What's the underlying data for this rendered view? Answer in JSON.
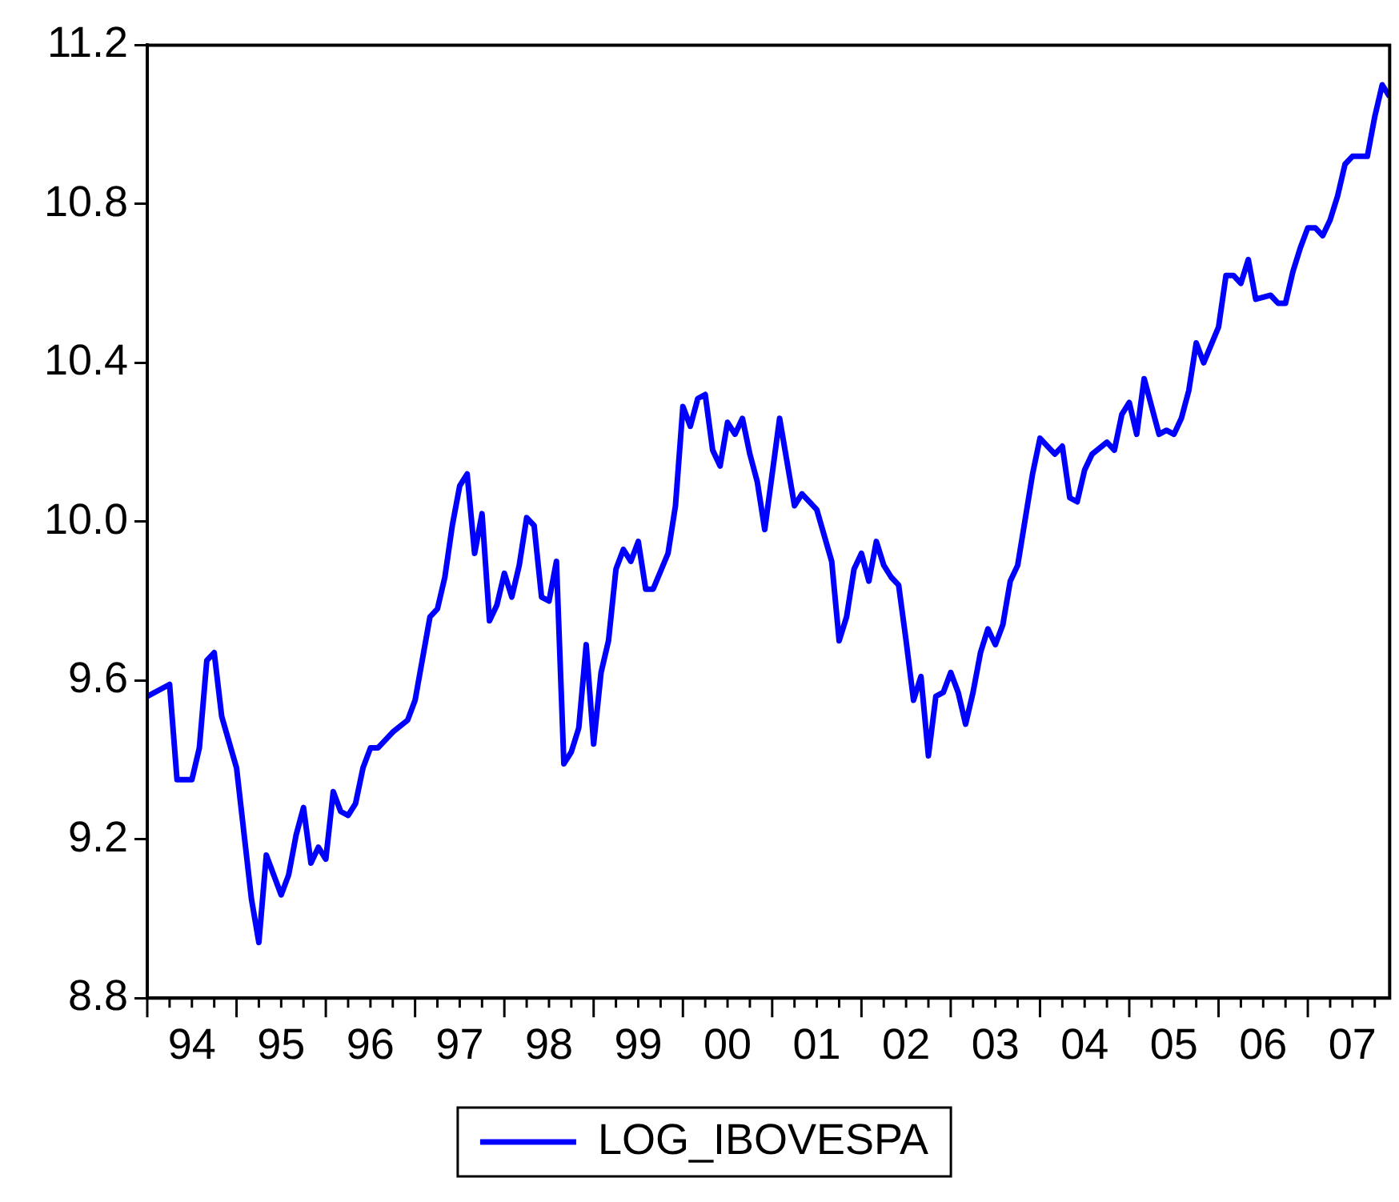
{
  "chart_data": {
    "type": "line",
    "xlim": [
      "1994-01",
      "2007-12"
    ],
    "ylim": [
      8.8,
      11.2
    ],
    "xticks": [
      {
        "value": "1994-07",
        "label": "94"
      },
      {
        "value": "1995-07",
        "label": "95"
      },
      {
        "value": "1996-07",
        "label": "96"
      },
      {
        "value": "1997-07",
        "label": "97"
      },
      {
        "value": "1998-07",
        "label": "98"
      },
      {
        "value": "1999-07",
        "label": "99"
      },
      {
        "value": "2000-07",
        "label": "00"
      },
      {
        "value": "2001-07",
        "label": "01"
      },
      {
        "value": "2002-07",
        "label": "02"
      },
      {
        "value": "2003-07",
        "label": "03"
      },
      {
        "value": "2004-07",
        "label": "04"
      },
      {
        "value": "2005-07",
        "label": "05"
      },
      {
        "value": "2006-07",
        "label": "06"
      },
      {
        "value": "2007-07",
        "label": "07"
      }
    ],
    "yticks": [
      8.8,
      9.2,
      9.6,
      {
        "value": 10,
        "label": "10.0"
      },
      10.4,
      10.8,
      11.2
    ],
    "legend": "bottom",
    "marker": "none",
    "line_style": "solid",
    "series": [
      {
        "name": "LOG_IBOVESPA",
        "color": "#0000ff",
        "x": [
          "1994-01",
          "1994-04",
          "1994-05",
          "1994-07",
          "1994-08",
          "1994-09",
          "1994-10",
          "1994-11",
          "1995-01",
          "1995-03",
          "1995-04",
          "1995-05",
          "1995-07",
          "1995-08",
          "1995-09",
          "1995-10",
          "1995-11",
          "1995-12",
          "1996-01",
          "1996-02",
          "1996-03",
          "1996-04",
          "1996-05",
          "1996-06",
          "1996-07",
          "1996-08",
          "1996-10",
          "1996-12",
          "1997-01",
          "1997-03",
          "1997-04",
          "1997-05",
          "1997-06",
          "1997-07",
          "1997-08",
          "1997-09",
          "1997-10",
          "1997-11",
          "1997-12",
          "1998-01",
          "1998-02",
          "1998-03",
          "1998-04",
          "1998-05",
          "1998-06",
          "1998-07",
          "1998-08",
          "1998-09",
          "1998-10",
          "1998-11",
          "1998-12",
          "1999-01",
          "1999-02",
          "1999-03",
          "1999-04",
          "1999-05",
          "1999-06",
          "1999-07",
          "1999-08",
          "1999-09",
          "1999-11",
          "1999-12",
          "2000-01",
          "2000-02",
          "2000-03",
          "2000-04",
          "2000-05",
          "2000-06",
          "2000-07",
          "2000-08",
          "2000-09",
          "2000-10",
          "2000-11",
          "2000-12",
          "2001-02",
          "2001-04",
          "2001-05",
          "2001-07",
          "2001-09",
          "2001-10",
          "2001-11",
          "2001-12",
          "2002-01",
          "2002-02",
          "2002-03",
          "2002-04",
          "2002-05",
          "2002-06",
          "2002-07",
          "2002-08",
          "2002-09",
          "2002-10",
          "2002-11",
          "2002-12",
          "2003-01",
          "2003-02",
          "2003-03",
          "2003-04",
          "2003-05",
          "2003-06",
          "2003-07",
          "2003-08",
          "2003-09",
          "2003-10",
          "2003-12",
          "2004-01",
          "2004-02",
          "2004-03",
          "2004-04",
          "2004-05",
          "2004-06",
          "2004-07",
          "2004-08",
          "2004-10",
          "2004-11",
          "2004-12",
          "2005-01",
          "2005-02",
          "2005-03",
          "2005-05",
          "2005-06",
          "2005-07",
          "2005-08",
          "2005-09",
          "2005-10",
          "2005-11",
          "2006-01",
          "2006-02",
          "2006-03",
          "2006-04",
          "2006-05",
          "2006-06",
          "2006-08",
          "2006-09",
          "2006-10",
          "2006-11",
          "2006-12",
          "2007-01",
          "2007-02",
          "2007-03",
          "2007-04",
          "2007-05",
          "2007-06",
          "2007-07",
          "2007-08",
          "2007-09",
          "2007-10",
          "2007-11",
          "2007-12"
        ],
        "values": [
          9.56,
          9.59,
          9.35,
          9.35,
          9.43,
          9.65,
          9.67,
          9.51,
          9.38,
          9.05,
          8.94,
          9.16,
          9.06,
          9.11,
          9.21,
          9.28,
          9.14,
          9.18,
          9.15,
          9.32,
          9.27,
          9.26,
          9.29,
          9.38,
          9.43,
          9.43,
          9.47,
          9.5,
          9.55,
          9.76,
          9.78,
          9.86,
          9.99,
          10.09,
          10.12,
          9.92,
          10.02,
          9.75,
          9.79,
          9.87,
          9.81,
          9.89,
          10.01,
          9.99,
          9.81,
          9.8,
          9.9,
          9.39,
          9.42,
          9.48,
          9.69,
          9.44,
          9.62,
          9.7,
          9.88,
          9.93,
          9.9,
          9.95,
          9.83,
          9.83,
          9.92,
          10.04,
          10.29,
          10.24,
          10.31,
          10.32,
          10.18,
          10.14,
          10.25,
          10.22,
          10.26,
          10.17,
          10.1,
          9.98,
          10.26,
          10.04,
          10.07,
          10.03,
          9.9,
          9.7,
          9.76,
          9.88,
          9.92,
          9.85,
          9.95,
          9.89,
          9.86,
          9.84,
          9.7,
          9.55,
          9.61,
          9.41,
          9.56,
          9.57,
          9.62,
          9.57,
          9.49,
          9.57,
          9.67,
          9.73,
          9.69,
          9.74,
          9.85,
          9.89,
          10.12,
          10.21,
          10.19,
          10.17,
          10.19,
          10.06,
          10.05,
          10.13,
          10.17,
          10.2,
          10.18,
          10.27,
          10.3,
          10.22,
          10.36,
          10.22,
          10.23,
          10.22,
          10.26,
          10.33,
          10.45,
          10.4,
          10.49,
          10.62,
          10.62,
          10.6,
          10.66,
          10.56,
          10.57,
          10.55,
          10.55,
          10.63,
          10.69,
          10.74,
          10.74,
          10.72,
          10.76,
          10.82,
          10.9,
          10.92,
          10.92,
          10.92,
          11.02,
          11.1,
          11.07
        ]
      }
    ]
  }
}
